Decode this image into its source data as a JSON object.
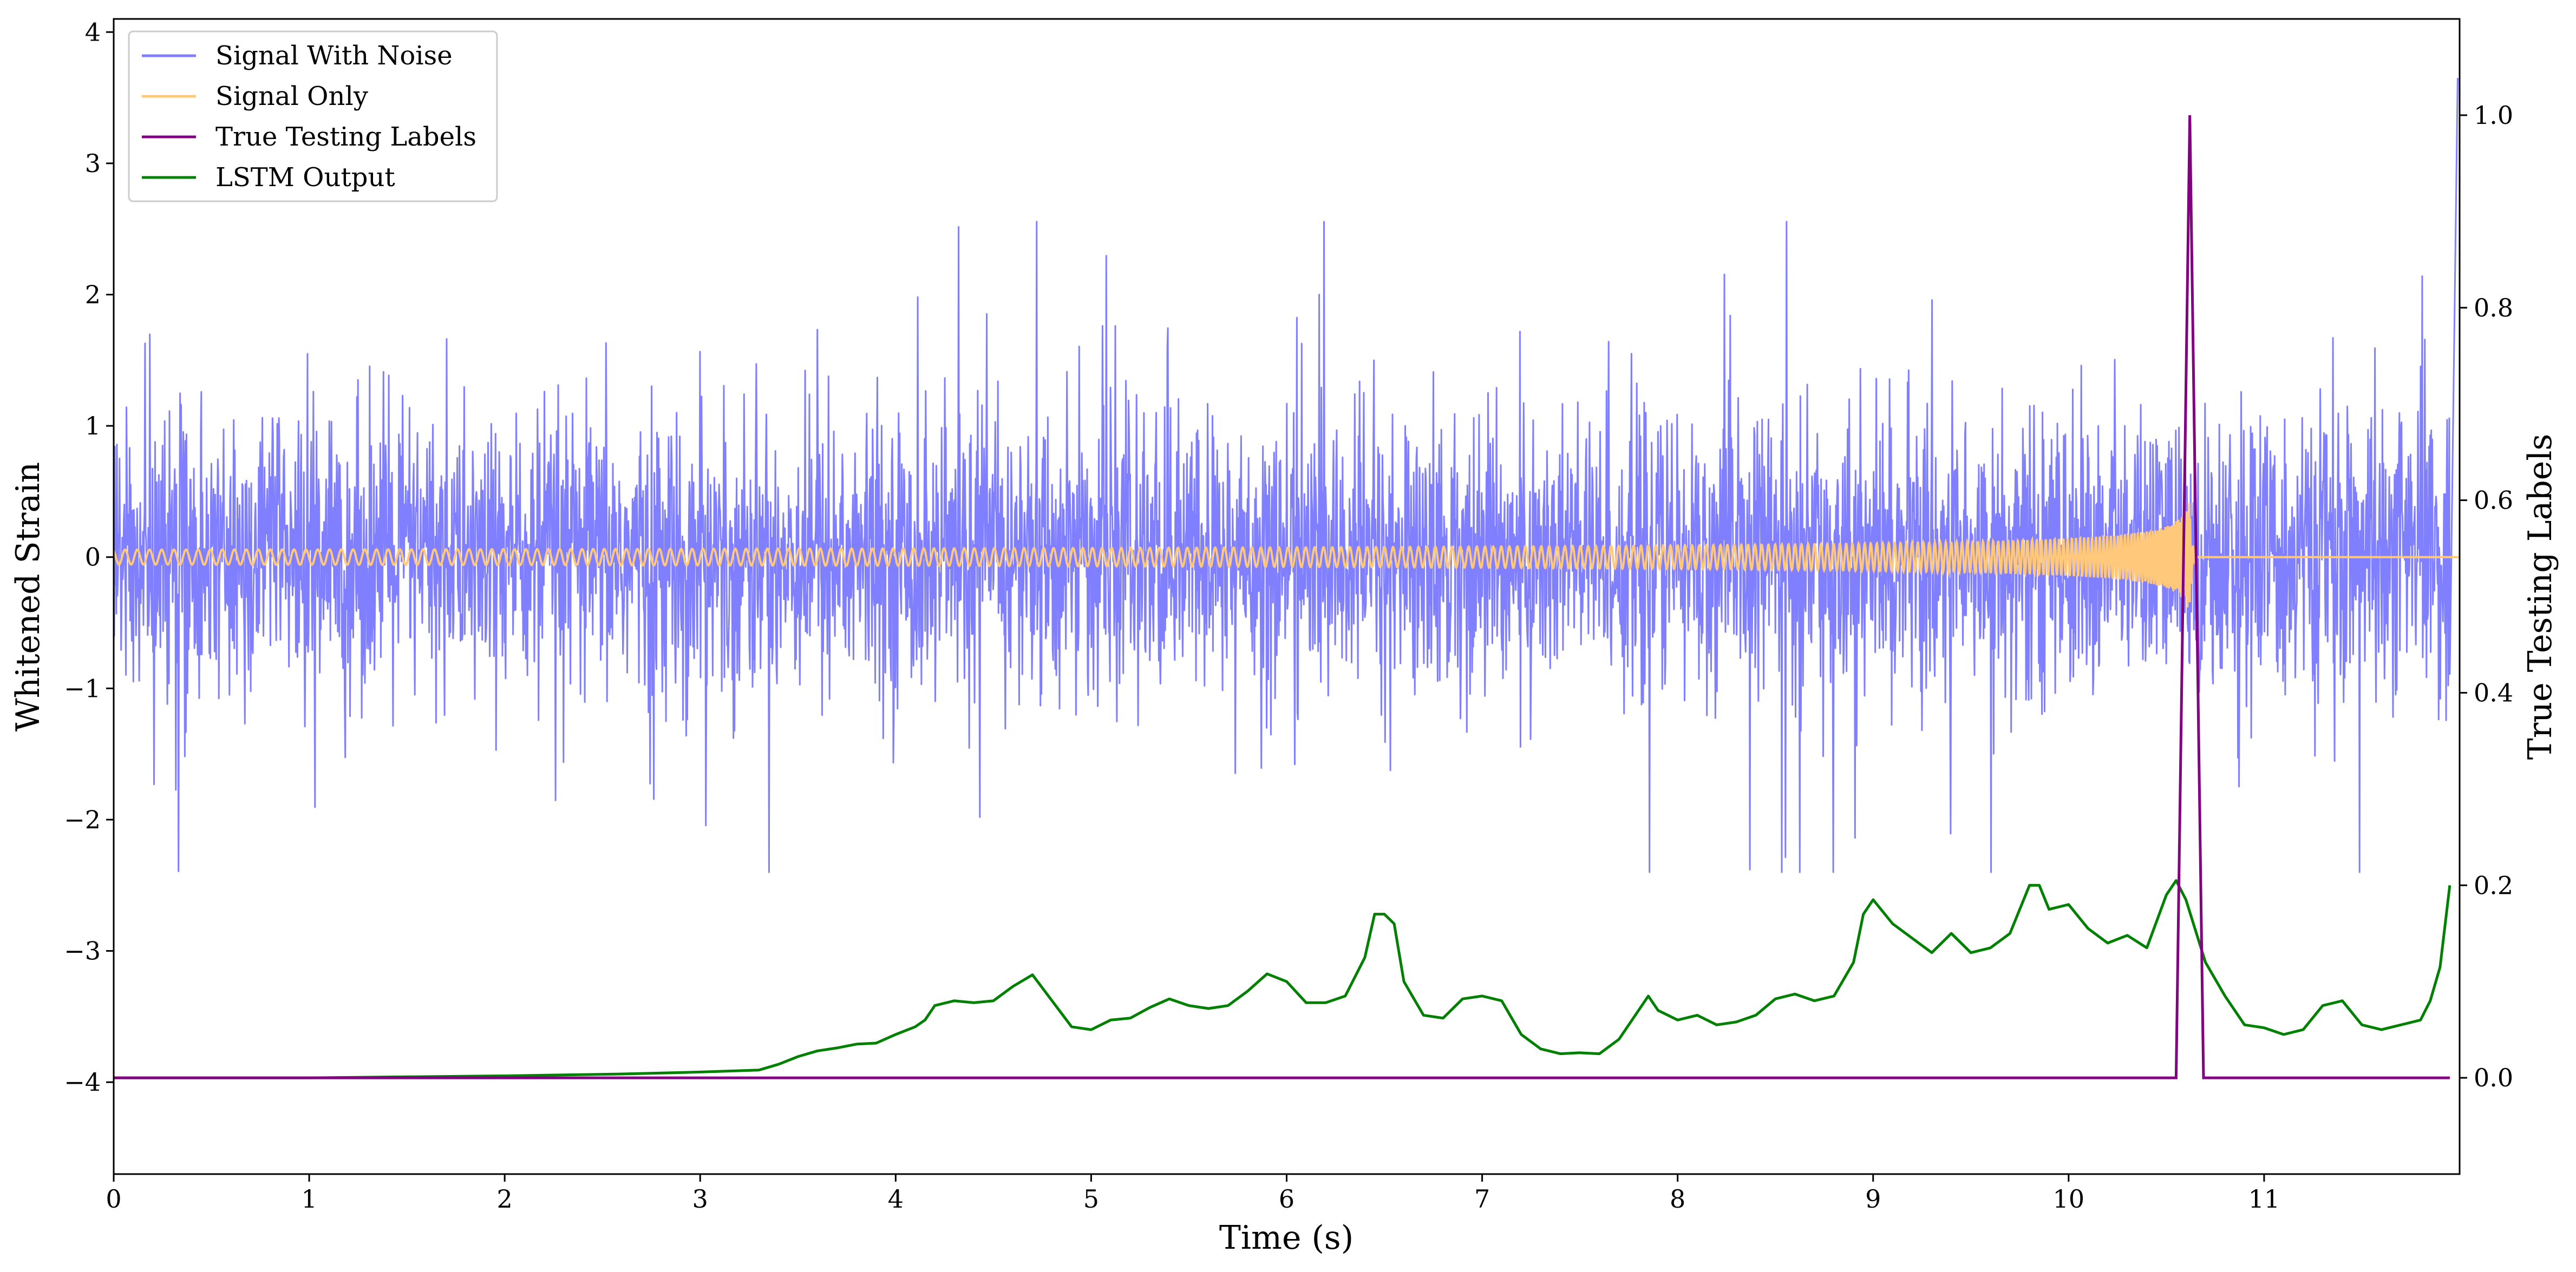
{
  "chart_data": {
    "type": "line",
    "xlabel": "Time (s)",
    "ylabel_left": "Whitened Strain",
    "ylabel_right": "True Testing Labels",
    "xlim": [
      0,
      12
    ],
    "ylim_left": [
      -4.7,
      4.1
    ],
    "ylim_right": [
      -0.1,
      1.1
    ],
    "x_ticks": [
      0,
      1,
      2,
      3,
      4,
      5,
      6,
      7,
      8,
      9,
      10,
      11
    ],
    "y_left_ticks": [
      4,
      3,
      2,
      1,
      0,
      -1,
      -2,
      -3,
      -4
    ],
    "y_right_ticks": [
      0.0,
      0.2,
      0.4,
      0.6,
      0.8,
      1.0
    ],
    "x_tick_labels": [
      "0",
      "1",
      "2",
      "3",
      "4",
      "5",
      "6",
      "7",
      "8",
      "9",
      "10",
      "11"
    ],
    "y_left_tick_labels": [
      "4",
      "3",
      "2",
      "1",
      "0",
      "−1",
      "−2",
      "−3",
      "−4"
    ],
    "y_right_tick_labels": [
      "0.0",
      "0.2",
      "0.4",
      "0.6",
      "0.8",
      "1.0"
    ],
    "grid": false,
    "legend_position": "top-left",
    "series": [
      {
        "name": "Signal With Noise",
        "axis": "left",
        "color": "#7f7fff",
        "kind": "noise",
        "typical_range": [
          -1.4,
          1.4
        ],
        "extreme_range": [
          -2.4,
          3.65
        ]
      },
      {
        "name": "Signal Only",
        "axis": "left",
        "color": "#ffc87a",
        "kind": "chirp",
        "merger_time": 10.62,
        "peak_amplitude": 0.45
      },
      {
        "name": "True Testing Labels",
        "axis": "right",
        "color": "#800080",
        "x": [
          0,
          10.55,
          10.62,
          10.69,
          11.95
        ],
        "y": [
          0,
          0,
          1.0,
          0,
          0
        ]
      },
      {
        "name": "LSTM Output",
        "axis": "right",
        "color": "#008000",
        "x": [
          0,
          0.5,
          1.0,
          1.5,
          2.0,
          2.3,
          2.6,
          2.8,
          3.0,
          3.3,
          3.4,
          3.5,
          3.6,
          3.7,
          3.8,
          3.9,
          4.0,
          4.1,
          4.15,
          4.2,
          4.3,
          4.4,
          4.5,
          4.6,
          4.7,
          4.8,
          4.9,
          5.0,
          5.1,
          5.2,
          5.3,
          5.4,
          5.5,
          5.6,
          5.7,
          5.8,
          5.9,
          6.0,
          6.1,
          6.2,
          6.3,
          6.4,
          6.45,
          6.5,
          6.55,
          6.6,
          6.7,
          6.8,
          6.9,
          7.0,
          7.1,
          7.2,
          7.3,
          7.4,
          7.5,
          7.6,
          7.7,
          7.8,
          7.85,
          7.9,
          8.0,
          8.1,
          8.2,
          8.3,
          8.4,
          8.5,
          8.6,
          8.7,
          8.8,
          8.9,
          8.95,
          9.0,
          9.1,
          9.2,
          9.3,
          9.4,
          9.5,
          9.6,
          9.7,
          9.8,
          9.85,
          9.9,
          10.0,
          10.1,
          10.2,
          10.3,
          10.4,
          10.5,
          10.55,
          10.6,
          10.7,
          10.8,
          10.9,
          11.0,
          11.1,
          11.2,
          11.3,
          11.4,
          11.5,
          11.6,
          11.7,
          11.8,
          11.85,
          11.9,
          11.95
        ],
        "y": [
          0,
          0,
          0,
          0.001,
          0.002,
          0.003,
          0.004,
          0.005,
          0.006,
          0.008,
          0.014,
          0.022,
          0.028,
          0.031,
          0.035,
          0.036,
          0.045,
          0.053,
          0.06,
          0.075,
          0.08,
          0.078,
          0.08,
          0.095,
          0.107,
          0.08,
          0.053,
          0.05,
          0.06,
          0.062,
          0.073,
          0.082,
          0.075,
          0.072,
          0.075,
          0.09,
          0.108,
          0.1,
          0.078,
          0.078,
          0.085,
          0.125,
          0.17,
          0.17,
          0.16,
          0.1,
          0.065,
          0.062,
          0.082,
          0.085,
          0.08,
          0.045,
          0.03,
          0.025,
          0.026,
          0.025,
          0.04,
          0.07,
          0.085,
          0.07,
          0.06,
          0.065,
          0.055,
          0.058,
          0.065,
          0.082,
          0.087,
          0.08,
          0.085,
          0.12,
          0.17,
          0.185,
          0.16,
          0.145,
          0.13,
          0.15,
          0.13,
          0.135,
          0.15,
          0.2,
          0.2,
          0.175,
          0.18,
          0.155,
          0.14,
          0.148,
          0.135,
          0.19,
          0.205,
          0.185,
          0.12,
          0.085,
          0.055,
          0.052,
          0.045,
          0.05,
          0.075,
          0.08,
          0.055,
          0.05,
          0.055,
          0.06,
          0.08,
          0.115,
          0.2
        ]
      }
    ]
  }
}
